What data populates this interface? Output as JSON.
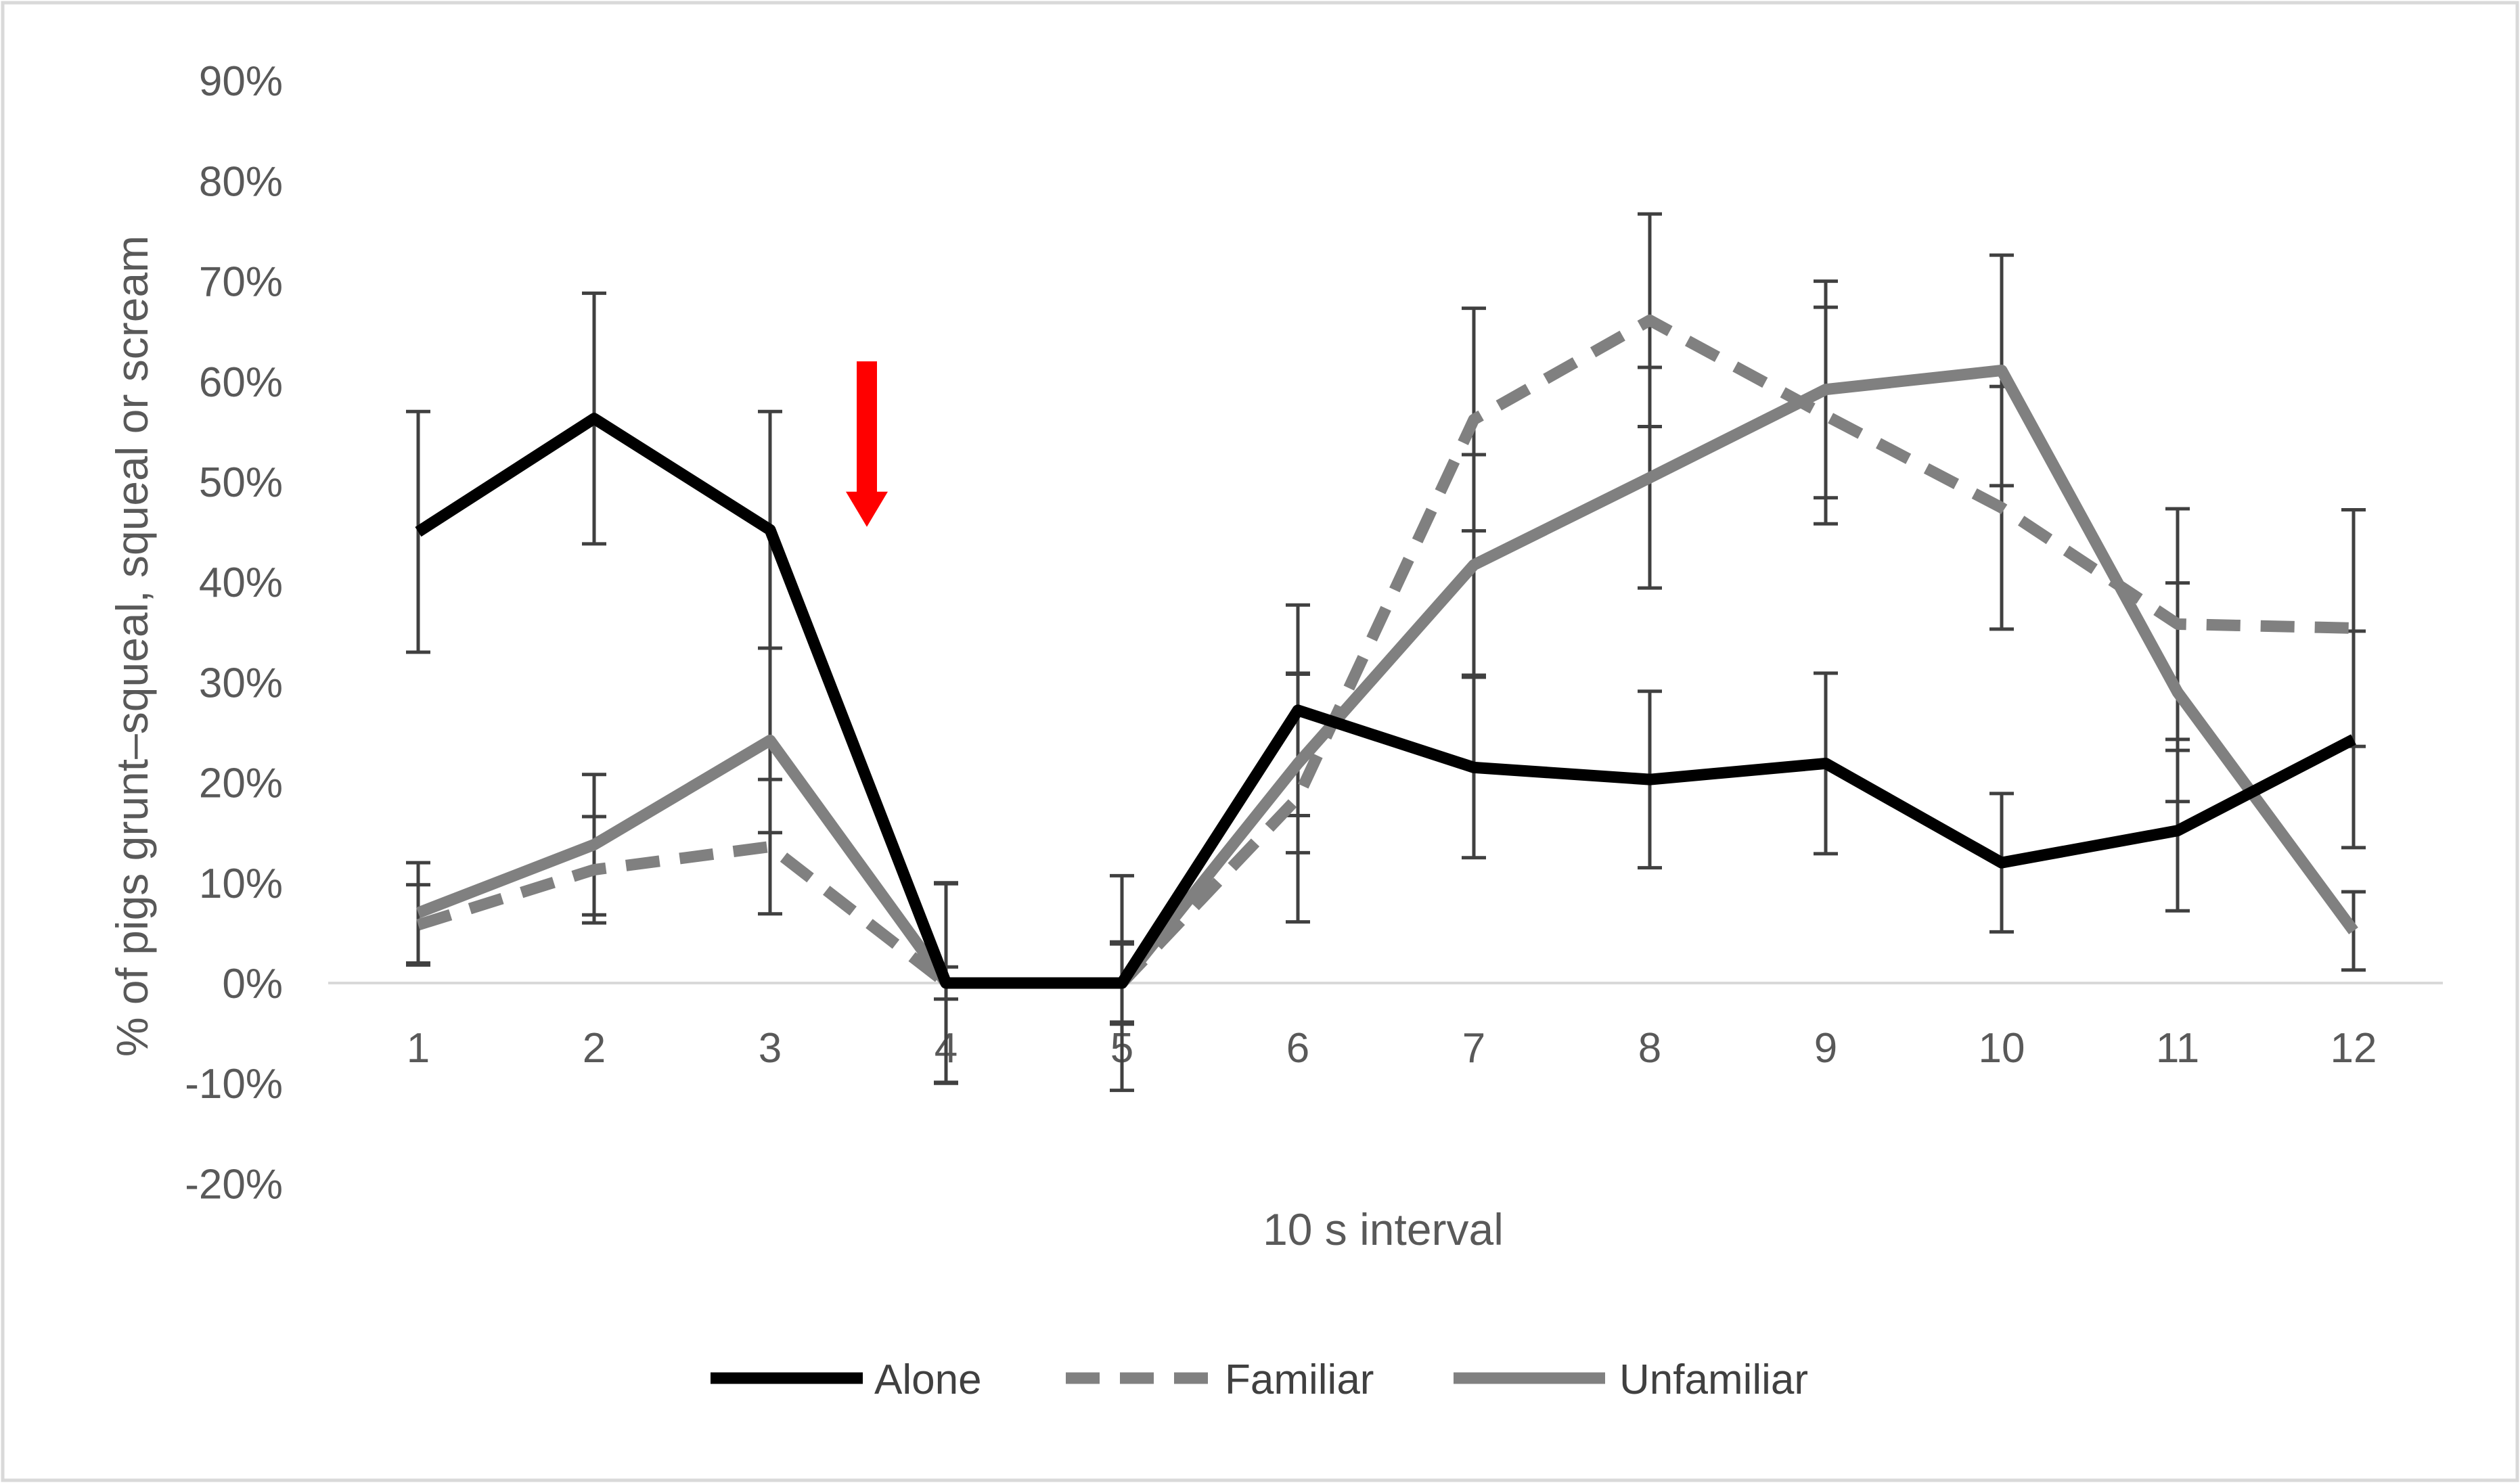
{
  "chart_data": {
    "type": "line",
    "title": "",
    "xlabel": "10 s interval",
    "ylabel": "% of pigs grunt–squeal, squeal or scream",
    "categories": [
      "1",
      "2",
      "3",
      "4",
      "5",
      "6",
      "7",
      "8",
      "9",
      "10",
      "11",
      "12"
    ],
    "ylim": [
      -20,
      90
    ],
    "yticks": [
      -20,
      -10,
      0,
      10,
      20,
      30,
      40,
      50,
      60,
      70,
      80,
      90
    ],
    "ytick_labels": [
      "-20%",
      "-10%",
      "0%",
      "10%",
      "20%",
      "30%",
      "40%",
      "50%",
      "60%",
      "70%",
      "80%",
      "90%"
    ],
    "grid": false,
    "legend_position": "bottom",
    "series": [
      {
        "name": "Alone",
        "style": "solid",
        "color": "#000000",
        "values": [
          45,
          56.3,
          45.2,
          0,
          0,
          27.2,
          21.5,
          20.3,
          21.9,
          12,
          15.2,
          24.3
        ],
        "errors": [
          12,
          12.5,
          11.8,
          9.9,
          10.7,
          10.5,
          9,
          8.8,
          9,
          6.9,
          8,
          10.8
        ]
      },
      {
        "name": "Familiar",
        "style": "dashed",
        "color": "#808080",
        "values": [
          5.8,
          11.3,
          13.6,
          0,
          0,
          18.5,
          56.2,
          66.1,
          56.6,
          47.4,
          35.8,
          35.4
        ],
        "errors": [
          4,
          5.3,
          6.7,
          1.6,
          4.1,
          12.4,
          11.1,
          10.6,
          10.8,
          12.1,
          11.5,
          11.8
        ]
      },
      {
        "name": "Unfamiliar",
        "style": "solid",
        "color": "#808080",
        "values": [
          7,
          13.8,
          24.2,
          0,
          0,
          21.9,
          41.7,
          50.4,
          59.2,
          61.1,
          29,
          5.2
        ],
        "errors": [
          5,
          7,
          9.2,
          10,
          3.9,
          8.9,
          11,
          11,
          10.8,
          11.5,
          10.9,
          3.9
        ]
      }
    ],
    "annotations": [
      {
        "type": "arrow",
        "direction": "down",
        "color": "#ff0000",
        "x_position": 3.55,
        "y_top": 62,
        "y_tip": 45.5
      }
    ]
  }
}
